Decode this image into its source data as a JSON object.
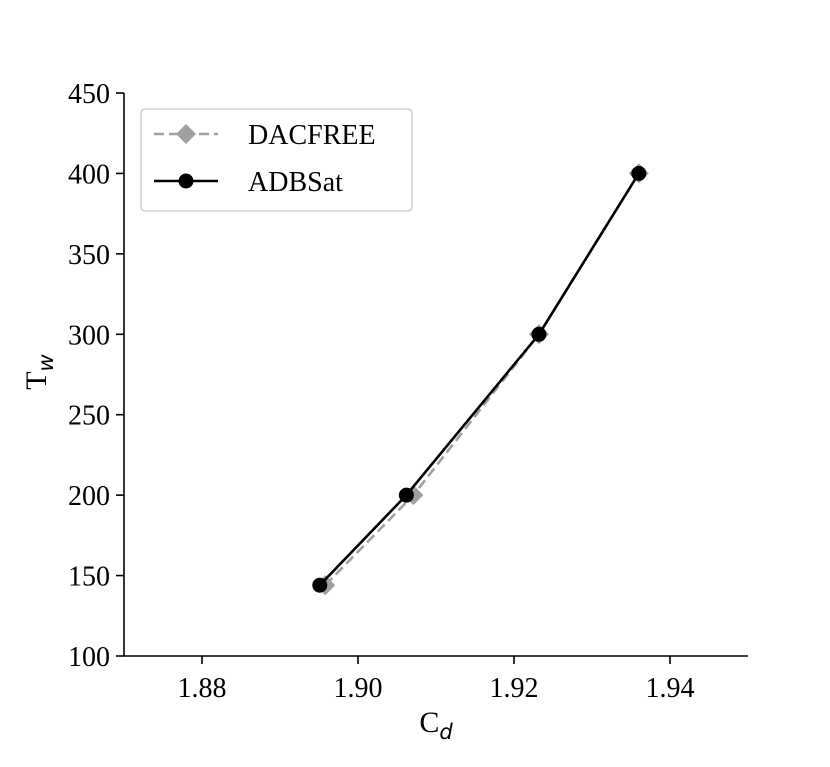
{
  "chart_data": {
    "type": "line",
    "title": "",
    "xlabel": "C",
    "xlabel_subscript": "d",
    "ylabel": "T",
    "ylabel_subscript": "w",
    "xlim": [
      1.87,
      1.95
    ],
    "ylim": [
      100,
      450
    ],
    "xticks": [
      1.88,
      1.9,
      1.92,
      1.94
    ],
    "xtick_labels": [
      "1.88",
      "1.90",
      "1.92",
      "1.94"
    ],
    "yticks": [
      100,
      150,
      200,
      250,
      300,
      350,
      400,
      450
    ],
    "ytick_labels": [
      "100",
      "150",
      "200",
      "250",
      "300",
      "350",
      "400",
      "450"
    ],
    "grid": false,
    "legend_position": "upper-left",
    "series": [
      {
        "name": "DACFREE",
        "color": "#a0a0a0",
        "line_style": "dashed",
        "marker": "diamond",
        "x": [
          1.8958,
          1.9071,
          1.9232,
          1.936
        ],
        "y": [
          144,
          200,
          300,
          400
        ]
      },
      {
        "name": "ADBSat",
        "color": "#000000",
        "line_style": "solid",
        "marker": "circle",
        "x": [
          1.8951,
          1.9062,
          1.9232,
          1.936
        ],
        "y": [
          144,
          200,
          300,
          400
        ]
      }
    ]
  }
}
